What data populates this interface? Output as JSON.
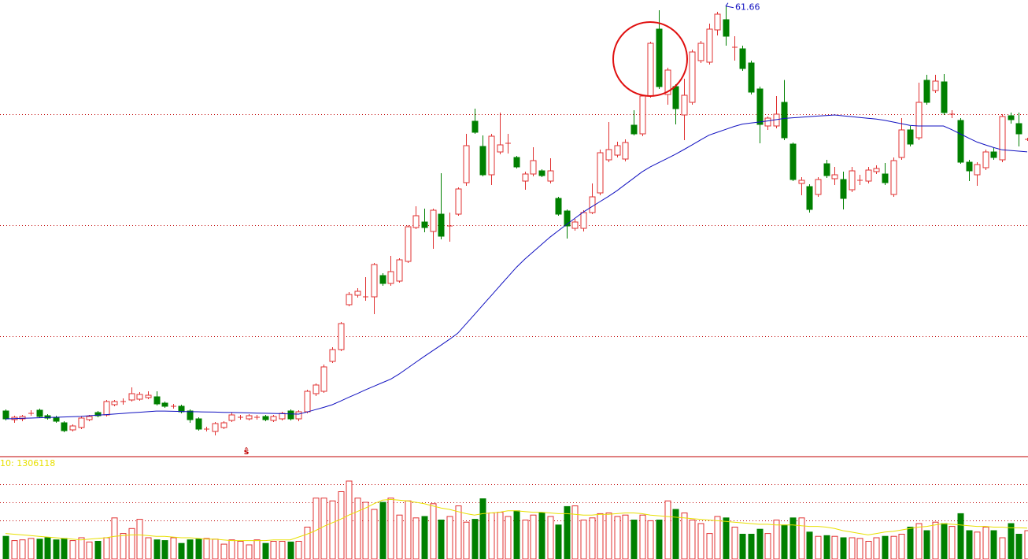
{
  "chart_data": {
    "type": "candlestick",
    "ylim": [
      21.6,
      62.2
    ],
    "gridlines": [
      32.31,
      42.18,
      52.05
    ],
    "up_color": "#e03030",
    "down_color": "#008000",
    "grid_color": "#c00000",
    "open": [
      25.66,
      24.89,
      24.96,
      25.45,
      25.73,
      25.24,
      25.1,
      24.61,
      23.98,
      24.19,
      24.89,
      25.52,
      25.31,
      26.22,
      26.5,
      26.64,
      26.71,
      26.85,
      26.92,
      26.36,
      26.08,
      26.08,
      25.66,
      24.96,
      24.05,
      23.84,
      24.19,
      24.82,
      25.1,
      24.96,
      25.1,
      25.17,
      24.82,
      24.96,
      25.66,
      24.96,
      25.59,
      27.2,
      27.41,
      30.07,
      31.12,
      35.11,
      35.95,
      35.81,
      35.81,
      37.7,
      37.0,
      37.21,
      38.96,
      41.97,
      42.46,
      41.62,
      43.16,
      42.11,
      43.16,
      45.96,
      51.42,
      49.18,
      46.66,
      48.69,
      49.46,
      48.2,
      46.1,
      46.73,
      47.01,
      46.1,
      44.56,
      43.44,
      41.9,
      41.9,
      43.3,
      45.05,
      47.99,
      48.41,
      48.06,
      51.07,
      50.3,
      53.66,
      59.61,
      53.8,
      54.5,
      51.98,
      53.1,
      56.81,
      56.67,
      59.54,
      60.45,
      58.0,
      57.86,
      56.6,
      54.29,
      51.0,
      51.0,
      53.1,
      49.39,
      45.89,
      45.61,
      44.91,
      47.64,
      46.31,
      46.24,
      45.33,
      46.17,
      46.1,
      46.94,
      46.73,
      44.91,
      48.2,
      50.65,
      49.95,
      55.06,
      54.15,
      54.92,
      52.05,
      51.49,
      47.78,
      46.66,
      47.29,
      48.69,
      47.99,
      51.91,
      51.21,
      49.81
    ],
    "high": [
      25.8,
      25.24,
      25.31,
      25.73,
      25.87,
      25.38,
      25.24,
      24.75,
      24.47,
      25.17,
      25.31,
      25.66,
      26.64,
      26.64,
      26.78,
      27.76,
      27.34,
      27.41,
      27.41,
      26.5,
      26.29,
      26.22,
      25.8,
      25.1,
      24.26,
      24.68,
      24.75,
      25.52,
      25.31,
      25.38,
      25.31,
      25.31,
      25.31,
      25.59,
      25.8,
      25.73,
      27.55,
      28.11,
      29.79,
      31.33,
      33.57,
      36.23,
      36.58,
      37.56,
      38.82,
      37.91,
      39.45,
      39.24,
      42.18,
      43.86,
      43.65,
      43.65,
      46.8,
      43.3,
      45.54,
      50.3,
      52.54,
      50.16,
      50.3,
      52.19,
      50.3,
      48.34,
      46.94,
      49.11,
      47.15,
      48.13,
      44.7,
      43.58,
      42.74,
      43.51,
      45.89,
      48.9,
      51.35,
      49.6,
      49.81,
      52.4,
      53.8,
      58.49,
      61.29,
      56.18,
      54.71,
      55.2,
      57.79,
      58.56,
      60.1,
      61.15,
      61.66,
      58.98,
      58.14,
      56.81,
      54.5,
      51.84,
      53.66,
      55.09,
      49.53,
      46.45,
      45.82,
      46.45,
      47.99,
      47.36,
      46.94,
      47.36,
      46.66,
      47.36,
      47.5,
      47.71,
      48.2,
      51.7,
      51.0,
      54.85,
      55.55,
      55.55,
      55.62,
      52.4,
      51.7,
      47.99,
      47.78,
      48.9,
      49.04,
      52.05,
      52.19,
      52.19,
      49.95
    ],
    "low": [
      24.82,
      24.61,
      24.75,
      25.24,
      25.03,
      24.89,
      24.61,
      23.77,
      23.84,
      24.05,
      24.75,
      25.1,
      25.17,
      26.08,
      26.22,
      26.5,
      26.57,
      26.71,
      26.15,
      25.94,
      25.87,
      25.45,
      24.61,
      23.91,
      23.84,
      23.49,
      24.05,
      24.68,
      24.89,
      24.82,
      24.89,
      24.75,
      24.68,
      24.82,
      24.82,
      24.75,
      25.45,
      26.99,
      27.27,
      29.93,
      30.98,
      34.97,
      35.74,
      35.46,
      34.27,
      36.79,
      36.79,
      37.07,
      38.82,
      41.83,
      41.55,
      40.08,
      40.92,
      40.71,
      43.02,
      45.68,
      50.3,
      46.52,
      45.75,
      48.48,
      48.55,
      47.22,
      45.33,
      46.52,
      46.45,
      45.89,
      43.02,
      40.99,
      41.69,
      41.62,
      43.16,
      44.84,
      47.78,
      48.2,
      47.85,
      50.16,
      50.09,
      53.52,
      54.29,
      52.89,
      51.14,
      49.74,
      52.89,
      56.6,
      56.46,
      59.05,
      58.14,
      56.81,
      55.9,
      53.8,
      49.46,
      50.65,
      50.79,
      49.74,
      46.1,
      44.84,
      43.3,
      44.7,
      46.38,
      45.75,
      43.58,
      45.12,
      45.75,
      45.89,
      46.73,
      45.75,
      44.7,
      47.99,
      49.18,
      49.74,
      52.89,
      53.94,
      51.98,
      51.7,
      47.64,
      46.1,
      45.68,
      47.08,
      47.99,
      47.78,
      51.21,
      49.18,
      49.67
    ],
    "close": [
      24.96,
      25.1,
      25.17,
      25.45,
      25.17,
      25.03,
      24.75,
      23.91,
      24.33,
      25.03,
      25.17,
      25.24,
      26.5,
      26.5,
      26.5,
      27.2,
      27.13,
      27.06,
      26.29,
      26.08,
      26.08,
      25.59,
      24.89,
      24.05,
      24.05,
      24.54,
      24.61,
      25.31,
      25.1,
      25.24,
      25.1,
      24.89,
      25.17,
      25.45,
      24.96,
      25.59,
      27.41,
      27.97,
      29.58,
      31.12,
      33.43,
      36.02,
      36.3,
      35.81,
      38.68,
      37.0,
      38.05,
      39.1,
      42.04,
      43.02,
      41.97,
      43.51,
      41.2,
      42.11,
      45.4,
      49.25,
      50.44,
      46.66,
      50.09,
      49.32,
      49.46,
      47.36,
      46.73,
      47.92,
      46.59,
      47.01,
      43.16,
      42.11,
      42.46,
      43.3,
      44.7,
      48.62,
      48.9,
      49.25,
      49.53,
      50.3,
      53.66,
      58.35,
      54.5,
      55.97,
      52.54,
      53.73,
      57.58,
      58.35,
      59.61,
      60.94,
      58.98,
      58.0,
      56.11,
      54.01,
      51.14,
      51.7,
      52.05,
      49.95,
      46.24,
      46.17,
      43.58,
      46.24,
      46.59,
      46.66,
      44.56,
      47.01,
      46.17,
      47.08,
      47.22,
      45.96,
      47.92,
      50.65,
      49.39,
      53.1,
      53.1,
      54.99,
      52.19,
      52.05,
      47.78,
      47.01,
      47.57,
      48.69,
      48.2,
      51.84,
      51.56,
      50.3,
      49.81
    ],
    "ma": {
      "color": "#1010c0",
      "values": [
        24.96,
        24.98,
        25.01,
        25.03,
        25.06,
        25.08,
        25.1,
        25.13,
        25.15,
        25.18,
        25.24,
        25.29,
        25.34,
        25.39,
        25.44,
        25.5,
        25.55,
        25.6,
        25.65,
        25.65,
        25.63,
        25.62,
        25.6,
        25.59,
        25.57,
        25.56,
        25.54,
        25.53,
        25.51,
        25.49,
        25.47,
        25.46,
        25.44,
        25.42,
        25.4,
        25.38,
        25.57,
        25.78,
        25.98,
        26.21,
        26.54,
        26.88,
        27.21,
        27.54,
        27.86,
        28.18,
        28.49,
        28.94,
        29.47,
        29.99,
        30.51,
        31.01,
        31.51,
        32.02,
        32.57,
        33.41,
        34.24,
        35.08,
        35.92,
        36.76,
        37.6,
        38.43,
        39.15,
        39.81,
        40.46,
        41.11,
        41.68,
        42.24,
        42.8,
        43.35,
        43.82,
        44.28,
        44.74,
        45.24,
        45.8,
        46.36,
        46.92,
        47.37,
        47.74,
        48.11,
        48.49,
        48.9,
        49.33,
        49.76,
        50.18,
        50.44,
        50.7,
        50.96,
        51.17,
        51.26,
        51.35,
        51.45,
        51.56,
        51.67,
        51.73,
        51.78,
        51.83,
        51.88,
        51.93,
        51.98,
        51.9,
        51.83,
        51.75,
        51.68,
        51.61,
        51.5,
        51.35,
        51.2,
        51.05,
        51.0,
        51.0,
        51.0,
        51.0,
        50.67,
        50.3,
        49.93,
        49.57,
        49.32,
        49.08,
        48.88,
        48.82,
        48.76,
        48.7
      ]
    },
    "marker": "ŝ",
    "volume": {
      "ylim": [
        0,
        4000000
      ],
      "gridlines": [
        1620000,
        2400000,
        3180000
      ],
      "values": [
        960000,
        780000,
        810000,
        870000,
        840000,
        900000,
        810000,
        870000,
        780000,
        900000,
        720000,
        750000,
        900000,
        1740000,
        1080000,
        1290000,
        1680000,
        900000,
        810000,
        780000,
        900000,
        660000,
        810000,
        840000,
        870000,
        840000,
        630000,
        810000,
        750000,
        600000,
        810000,
        660000,
        750000,
        750000,
        720000,
        750000,
        1350000,
        2580000,
        2580000,
        2460000,
        2850000,
        3300000,
        2580000,
        2400000,
        2100000,
        2400000,
        2580000,
        1860000,
        2460000,
        1740000,
        1800000,
        2340000,
        1650000,
        1800000,
        2250000,
        1560000,
        1680000,
        2550000,
        1950000,
        1980000,
        1800000,
        2040000,
        1650000,
        1860000,
        1950000,
        1800000,
        1440000,
        2220000,
        2250000,
        1650000,
        1740000,
        1920000,
        1950000,
        1800000,
        1860000,
        1650000,
        1860000,
        1620000,
        1650000,
        2460000,
        2100000,
        1950000,
        1650000,
        1500000,
        1080000,
        1800000,
        1740000,
        1350000,
        1050000,
        1050000,
        1260000,
        1080000,
        1650000,
        1440000,
        1740000,
        1740000,
        1140000,
        960000,
        990000,
        960000,
        900000,
        900000,
        870000,
        750000,
        900000,
        960000,
        960000,
        1050000,
        1350000,
        1500000,
        1200000,
        1560000,
        1500000,
        1380000,
        1920000,
        1200000,
        1140000,
        1350000,
        1200000,
        900000,
        1500000,
        1050000,
        1200000
      ],
      "ma": {
        "label": "10: 1306118",
        "color": "#e8e000",
        "values": [
          1080000,
          1050000,
          1020000,
          990000,
          960000,
          930000,
          900000,
          870000,
          840000,
          810000,
          840000,
          870000,
          900000,
          960000,
          990000,
          1020000,
          1020000,
          990000,
          960000,
          960000,
          930000,
          900000,
          900000,
          870000,
          840000,
          840000,
          810000,
          780000,
          780000,
          780000,
          780000,
          780000,
          810000,
          810000,
          810000,
          930000,
          1050000,
          1200000,
          1380000,
          1530000,
          1680000,
          1860000,
          2010000,
          2160000,
          2340000,
          2490000,
          2520000,
          2490000,
          2460000,
          2400000,
          2340000,
          2250000,
          2160000,
          2100000,
          2010000,
          1920000,
          1860000,
          1920000,
          1950000,
          1980000,
          2040000,
          2040000,
          2010000,
          1980000,
          1980000,
          1950000,
          1920000,
          1920000,
          1890000,
          1860000,
          1860000,
          1890000,
          1890000,
          1920000,
          1950000,
          1950000,
          1920000,
          1860000,
          1830000,
          1800000,
          1770000,
          1740000,
          1710000,
          1680000,
          1650000,
          1620000,
          1590000,
          1560000,
          1530000,
          1500000,
          1470000,
          1470000,
          1440000,
          1440000,
          1440000,
          1410000,
          1380000,
          1380000,
          1350000,
          1290000,
          1200000,
          1140000,
          1080000,
          1020000,
          1080000,
          1140000,
          1170000,
          1230000,
          1290000,
          1350000,
          1380000,
          1440000,
          1500000,
          1470000,
          1440000,
          1410000,
          1380000,
          1380000,
          1350000,
          1350000,
          1320000,
          1320000,
          1306118
        ]
      }
    }
  }
}
